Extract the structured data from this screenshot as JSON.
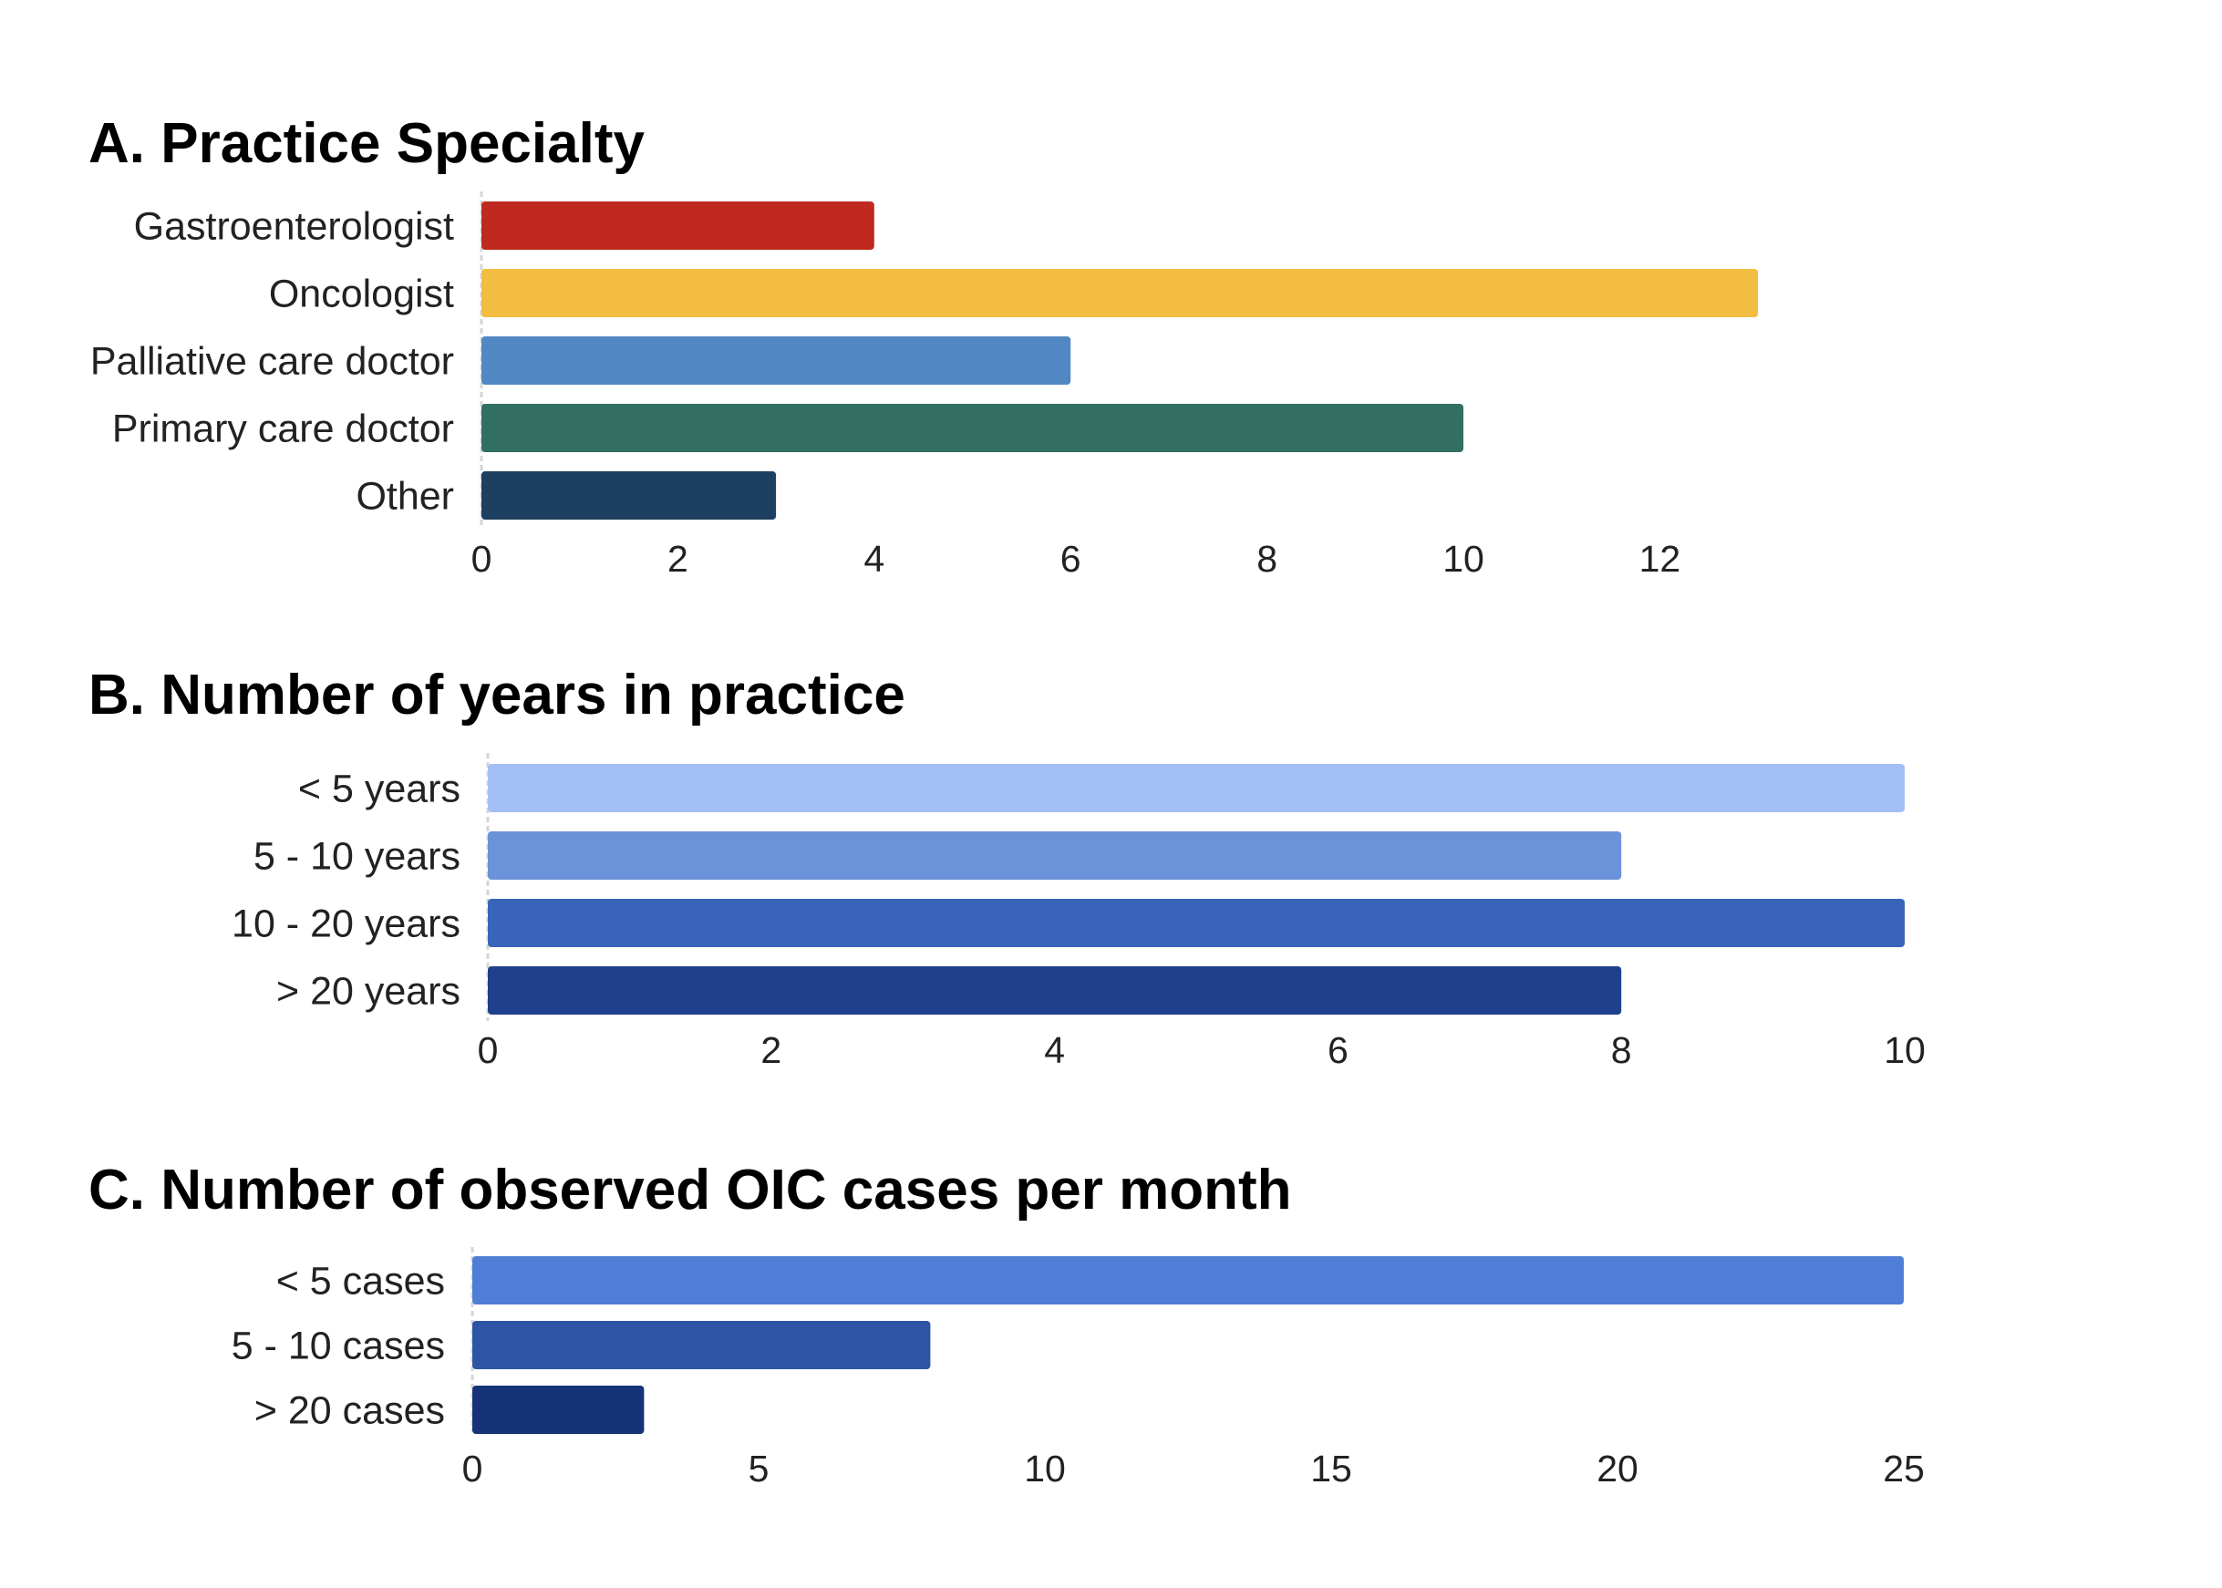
{
  "chart_data": [
    {
      "type": "bar",
      "orientation": "horizontal",
      "title": "A. Practice Specialty",
      "categories": [
        "Gastroenterologist",
        "Oncologist",
        "Palliative care doctor",
        "Primary care doctor",
        "Other"
      ],
      "values": [
        4,
        13,
        6,
        10,
        3
      ],
      "colors": [
        "#c0291f",
        "#f3bd42",
        "#5187c3",
        "#336e63",
        "#1e4060"
      ],
      "xlim": [
        0,
        13
      ],
      "xticks": [
        "0",
        "2",
        "4",
        "6",
        "8",
        "10",
        "12"
      ],
      "grid": false,
      "legend": "none"
    },
    {
      "type": "bar",
      "orientation": "horizontal",
      "title": "B. Number of years in practice",
      "categories": [
        "< 5 years",
        "5 - 10 years",
        "10 - 20 years",
        "> 20 years"
      ],
      "values": [
        10,
        8,
        10,
        8
      ],
      "colors": [
        "#a3bff5",
        "#6b93da",
        "#3864ba",
        "#1f418d"
      ],
      "xlim": [
        0,
        10
      ],
      "xticks": [
        "0",
        "2",
        "4",
        "6",
        "8",
        "10"
      ],
      "grid": false,
      "legend": "none"
    },
    {
      "type": "bar",
      "orientation": "horizontal",
      "title": "C. Number of observed OIC cases per month",
      "categories": [
        "< 5 cases",
        "5 - 10 cases",
        "> 20 cases"
      ],
      "values": [
        25,
        8,
        3
      ],
      "colors": [
        "#507ed6",
        "#2e55a4",
        "#173377"
      ],
      "xlim": [
        0,
        25
      ],
      "xticks": [
        "0",
        "5",
        "10",
        "15",
        "20",
        "25"
      ],
      "grid": false,
      "legend": "none"
    }
  ]
}
